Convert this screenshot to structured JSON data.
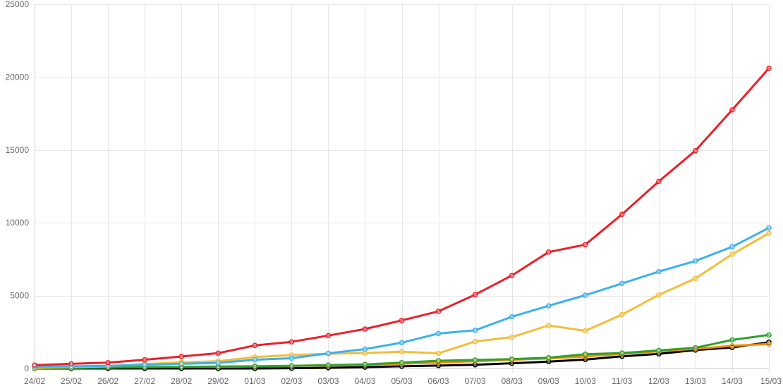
{
  "chart_data": {
    "type": "line",
    "title": "",
    "xlabel": "",
    "ylabel": "",
    "ylim": [
      0,
      25000
    ],
    "yticks": [
      "0",
      "5000",
      "10000",
      "15000",
      "20000",
      "25000"
    ],
    "ytick_values": [
      0,
      5000,
      10000,
      15000,
      20000,
      25000
    ],
    "grid": true,
    "legend": "none",
    "categories": [
      "24/02",
      "25/02",
      "26/02",
      "27/02",
      "28/02",
      "29/02",
      "01/03",
      "02/03",
      "03/03",
      "04/03",
      "05/03",
      "06/03",
      "07/03",
      "08/03",
      "09/03",
      "10/03",
      "11/03",
      "12/03",
      "13/03",
      "14/03",
      "15/03"
    ],
    "series": [
      {
        "color": "#e8202a",
        "values": [
          230,
          320,
          400,
          600,
          820,
          1050,
          1580,
          1830,
          2260,
          2710,
          3300,
          3920,
          5070,
          6380,
          7990,
          8500,
          10580,
          12840,
          14950,
          17750,
          20600
        ]
      },
      {
        "color": "#3cb1ea",
        "values": [
          120,
          150,
          180,
          250,
          320,
          380,
          600,
          700,
          1040,
          1330,
          1770,
          2400,
          2620,
          3550,
          4300,
          5030,
          5830,
          6650,
          7380,
          8350,
          9650
        ]
      },
      {
        "color": "#f0be3c",
        "values": [
          40,
          90,
          150,
          300,
          420,
          500,
          780,
          920,
          1010,
          1060,
          1150,
          1040,
          1850,
          2150,
          2950,
          2580,
          3700,
          5050,
          6180,
          7840,
          9280
        ]
      },
      {
        "color": "#2ea12e",
        "values": [
          30,
          40,
          60,
          90,
          110,
          130,
          150,
          180,
          230,
          280,
          400,
          530,
          580,
          640,
          740,
          980,
          1060,
          1240,
          1420,
          1960,
          2300
        ]
      },
      {
        "color": "#f08c00",
        "values": [
          50,
          60,
          70,
          80,
          100,
          110,
          140,
          170,
          200,
          260,
          330,
          400,
          500,
          590,
          690,
          820,
          1000,
          1180,
          1350,
          1550,
          1680
        ]
      },
      {
        "color": "#000000",
        "values": [
          0,
          0,
          0,
          0,
          0,
          0,
          0,
          20,
          50,
          90,
          150,
          200,
          250,
          360,
          470,
          610,
          830,
          1000,
          1260,
          1440,
          1800
        ]
      }
    ]
  }
}
